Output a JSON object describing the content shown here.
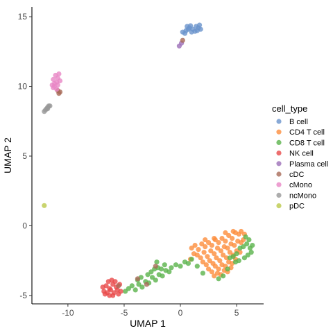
{
  "chart_data": {
    "type": "scatter",
    "xlabel": "UMAP 1",
    "ylabel": "UMAP 2",
    "xlim": [
      -13.2,
      7.4
    ],
    "ylim": [
      -5.6,
      15.7
    ],
    "x_ticks": [
      -10,
      -5,
      0,
      5
    ],
    "x_tick_labels": [
      "-10",
      "-5",
      "0",
      "5"
    ],
    "y_ticks": [
      -5,
      0,
      5,
      10,
      15
    ],
    "y_tick_labels": [
      "-5",
      "0",
      "5",
      "10",
      "15"
    ],
    "grid": false,
    "legend": {
      "title": "cell_type",
      "position": "right",
      "entries": [
        {
          "label": "B cell",
          "color": "#6a93cc"
        },
        {
          "label": "CD4 T cell",
          "color": "#fd8d3c"
        },
        {
          "label": "CD8 T cell",
          "color": "#5ab34b"
        },
        {
          "label": "NK cell",
          "color": "#e84a4a"
        },
        {
          "label": "Plasma cell",
          "color": "#9c6fb8"
        },
        {
          "label": "cDC",
          "color": "#a86a58"
        },
        {
          "label": "cMono",
          "color": "#e987c6"
        },
        {
          "label": "ncMono",
          "color": "#999999"
        },
        {
          "label": "pDC",
          "color": "#bcc94a"
        }
      ]
    },
    "series": [
      {
        "name": "B cell",
        "color": "#6a93cc",
        "points": [
          [
            0.2,
            13.9
          ],
          [
            0.5,
            14.0
          ],
          [
            0.8,
            14.2
          ],
          [
            1.1,
            14.1
          ],
          [
            1.4,
            14.3
          ],
          [
            1.6,
            14.2
          ],
          [
            1.8,
            14.1
          ],
          [
            0.6,
            14.3
          ],
          [
            1.0,
            13.9
          ],
          [
            1.3,
            13.95
          ],
          [
            0.9,
            14.35
          ],
          [
            1.7,
            14.4
          ],
          [
            0.4,
            13.8
          ],
          [
            1.5,
            14.0
          ],
          [
            0.7,
            14.1
          ]
        ]
      },
      {
        "name": "CD4 T cell",
        "color": "#fd8d3c",
        "points": [
          [
            1.0,
            -1.6
          ],
          [
            1.3,
            -1.4
          ],
          [
            1.6,
            -1.7
          ],
          [
            1.9,
            -1.3
          ],
          [
            2.2,
            -1.5
          ],
          [
            2.5,
            -1.2
          ],
          [
            2.8,
            -1.4
          ],
          [
            3.1,
            -1.0
          ],
          [
            3.4,
            -1.2
          ],
          [
            3.7,
            -0.9
          ],
          [
            4.0,
            -1.1
          ],
          [
            4.3,
            -0.7
          ],
          [
            4.6,
            -0.9
          ],
          [
            4.9,
            -0.5
          ],
          [
            5.2,
            -0.6
          ],
          [
            5.4,
            -0.4
          ],
          [
            1.5,
            -2.1
          ],
          [
            1.8,
            -2.3
          ],
          [
            2.1,
            -1.9
          ],
          [
            2.4,
            -2.2
          ],
          [
            2.7,
            -1.8
          ],
          [
            3.0,
            -2.0
          ],
          [
            3.3,
            -1.6
          ],
          [
            3.6,
            -1.8
          ],
          [
            3.9,
            -1.5
          ],
          [
            4.2,
            -1.6
          ],
          [
            4.5,
            -1.3
          ],
          [
            4.8,
            -1.4
          ],
          [
            5.1,
            -1.1
          ],
          [
            5.4,
            -1.2
          ],
          [
            2.0,
            -2.6
          ],
          [
            2.3,
            -2.8
          ],
          [
            2.6,
            -2.5
          ],
          [
            2.9,
            -2.7
          ],
          [
            3.2,
            -2.3
          ],
          [
            3.5,
            -2.5
          ],
          [
            3.8,
            -2.1
          ],
          [
            4.1,
            -2.3
          ],
          [
            4.4,
            -1.9
          ],
          [
            4.7,
            -2.1
          ],
          [
            5.0,
            -1.8
          ],
          [
            5.3,
            -1.9
          ],
          [
            2.5,
            -3.1
          ],
          [
            2.8,
            -3.3
          ],
          [
            3.1,
            -2.9
          ],
          [
            3.4,
            -3.1
          ],
          [
            3.7,
            -2.8
          ],
          [
            4.0,
            -2.9
          ],
          [
            4.3,
            -2.6
          ],
          [
            4.6,
            -2.7
          ],
          [
            4.9,
            -2.4
          ],
          [
            3.0,
            -3.6
          ],
          [
            3.3,
            -3.4
          ],
          [
            3.6,
            -3.5
          ],
          [
            3.9,
            -3.2
          ],
          [
            4.2,
            -3.3
          ],
          [
            4.5,
            -3.0
          ],
          [
            1.2,
            -2.0
          ],
          [
            0.9,
            -2.4
          ],
          [
            5.6,
            -1.0
          ],
          [
            5.7,
            -0.6
          ],
          [
            2.2,
            -1.0
          ],
          [
            3.0,
            -0.9
          ],
          [
            4.0,
            -0.5
          ],
          [
            4.7,
            -0.4
          ]
        ]
      },
      {
        "name": "CD8 T cell",
        "color": "#5ab34b",
        "points": [
          [
            -4.6,
            -4.5
          ],
          [
            -4.3,
            -4.3
          ],
          [
            -4.0,
            -4.6
          ],
          [
            -3.7,
            -4.2
          ],
          [
            -3.4,
            -4.4
          ],
          [
            -3.1,
            -4.0
          ],
          [
            -2.8,
            -4.1
          ],
          [
            -2.5,
            -3.7
          ],
          [
            -2.2,
            -3.9
          ],
          [
            -1.9,
            -3.5
          ],
          [
            -1.6,
            -3.6
          ],
          [
            -1.3,
            -3.2
          ],
          [
            -3.8,
            -3.9
          ],
          [
            -3.5,
            -3.7
          ],
          [
            -2.9,
            -3.5
          ],
          [
            -2.6,
            -3.3
          ],
          [
            -2.3,
            -3.1
          ],
          [
            -2.0,
            -3.0
          ],
          [
            -1.7,
            -3.1
          ],
          [
            -1.4,
            -2.8
          ],
          [
            -0.8,
            -3.0
          ],
          [
            -0.4,
            -2.8
          ],
          [
            0.0,
            -2.9
          ],
          [
            0.4,
            -2.6
          ],
          [
            0.7,
            -2.7
          ],
          [
            1.0,
            -2.4
          ],
          [
            4.4,
            -2.3
          ],
          [
            4.7,
            -2.2
          ],
          [
            5.0,
            -2.0
          ],
          [
            5.3,
            -1.6
          ],
          [
            5.6,
            -1.5
          ],
          [
            5.9,
            -1.3
          ],
          [
            6.2,
            -1.6
          ],
          [
            6.3,
            -1.9
          ],
          [
            6.0,
            -2.1
          ],
          [
            5.7,
            -2.3
          ],
          [
            5.2,
            -2.5
          ],
          [
            4.9,
            -2.6
          ],
          [
            4.2,
            -3.1
          ],
          [
            3.4,
            -3.8
          ],
          [
            3.8,
            -3.6
          ],
          [
            6.1,
            -1.0
          ],
          [
            5.8,
            -0.8
          ],
          [
            6.4,
            -1.4
          ],
          [
            2.0,
            -3.4
          ],
          [
            1.5,
            -2.9
          ],
          [
            -1.0,
            -3.3
          ],
          [
            -2.1,
            -2.6
          ],
          [
            -4.9,
            -4.7
          ]
        ]
      },
      {
        "name": "NK cell",
        "color": "#e84a4a",
        "points": [
          [
            -6.9,
            -4.4
          ],
          [
            -6.6,
            -4.3
          ],
          [
            -6.3,
            -4.5
          ],
          [
            -6.0,
            -4.2
          ],
          [
            -5.7,
            -4.4
          ],
          [
            -5.4,
            -4.2
          ],
          [
            -6.8,
            -4.7
          ],
          [
            -6.5,
            -4.8
          ],
          [
            -6.2,
            -4.6
          ],
          [
            -5.9,
            -4.8
          ],
          [
            -5.6,
            -4.6
          ],
          [
            -5.3,
            -4.7
          ],
          [
            -6.4,
            -4.0
          ],
          [
            -6.1,
            -3.9
          ],
          [
            -5.8,
            -4.0
          ],
          [
            -6.7,
            -4.9
          ],
          [
            -6.0,
            -5.0
          ],
          [
            -5.5,
            -4.9
          ],
          [
            -6.3,
            -5.0
          ]
        ]
      },
      {
        "name": "Plasma cell",
        "color": "#9c6fb8",
        "points": [
          [
            -0.1,
            12.9
          ],
          [
            0.1,
            13.1
          ]
        ]
      },
      {
        "name": "cDC",
        "color": "#a86a58",
        "points": [
          [
            -10.8,
            9.5
          ],
          [
            -10.7,
            9.6
          ],
          [
            -10.9,
            9.7
          ],
          [
            0.2,
            13.3
          ],
          [
            -5.5,
            -4.3
          ],
          [
            -2.2,
            -2.9
          ],
          [
            -3.8,
            -3.8
          ],
          [
            -3.0,
            -4.2
          ]
        ]
      },
      {
        "name": "cMono",
        "color": "#e987c6",
        "points": [
          [
            -11.2,
            10.0
          ],
          [
            -11.0,
            10.3
          ],
          [
            -11.3,
            10.5
          ],
          [
            -10.9,
            10.6
          ],
          [
            -11.1,
            10.8
          ],
          [
            -10.8,
            10.9
          ],
          [
            -11.2,
            10.2
          ],
          [
            -10.9,
            10.1
          ],
          [
            -11.0,
            9.8
          ],
          [
            -11.3,
            9.9
          ],
          [
            -10.7,
            10.4
          ],
          [
            -11.4,
            10.1
          ]
        ]
      },
      {
        "name": "ncMono",
        "color": "#999999",
        "points": [
          [
            -12.1,
            8.2
          ],
          [
            -12.0,
            8.3
          ],
          [
            -11.9,
            8.4
          ],
          [
            -11.8,
            8.5
          ],
          [
            -11.7,
            8.6
          ],
          [
            -11.6,
            8.6
          ],
          [
            -11.8,
            8.4
          ]
        ]
      },
      {
        "name": "pDC",
        "color": "#bcc94a",
        "points": [
          [
            -12.1,
            1.45
          ]
        ]
      }
    ]
  }
}
